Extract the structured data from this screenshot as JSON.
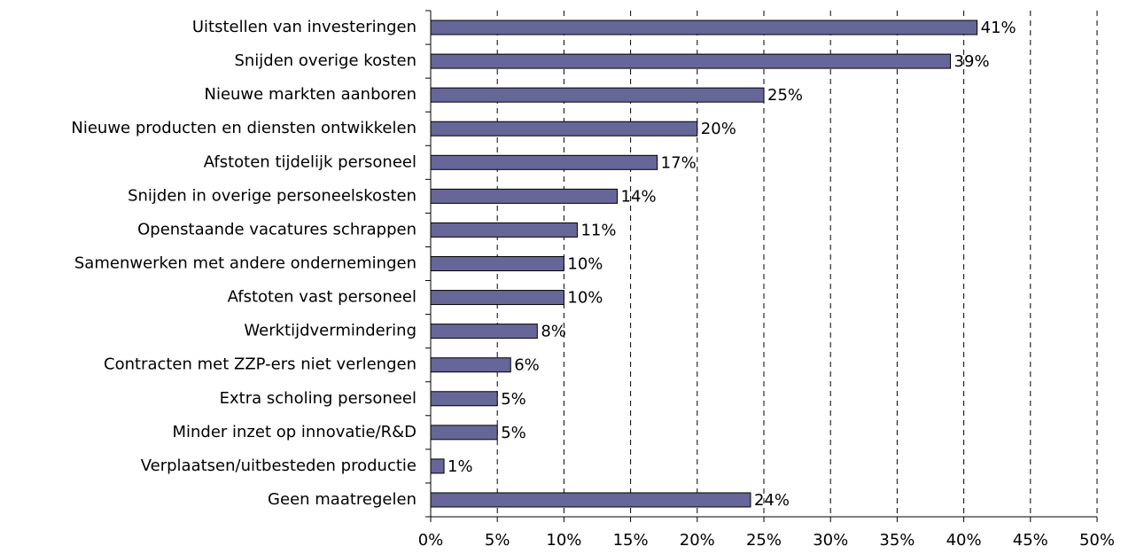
{
  "chart_data": {
    "type": "bar",
    "orientation": "horizontal",
    "categories": [
      "Uitstellen van investeringen",
      "Snijden overige kosten ",
      "Nieuwe markten aanboren",
      "Nieuwe producten en diensten ontwikkelen",
      "Afstoten tijdelijk personeel",
      "Snijden in overige personeelskosten",
      "Openstaande vacatures schrappen",
      "Samenwerken met andere ondernemingen",
      "Afstoten vast personeel",
      "Werktijdvermindering",
      "Contracten met ZZP-ers niet verlengen ",
      "Extra scholing personeel",
      "Minder inzet op innovatie/R&D",
      "Verplaatsen/uitbesteden productie",
      "Geen maatregelen"
    ],
    "values": [
      41,
      39,
      25,
      20,
      17,
      14,
      11,
      10,
      10,
      8,
      6,
      5,
      5,
      1,
      24
    ],
    "value_labels": [
      "41%",
      "39%",
      "25%",
      "20%",
      "17%",
      "14%",
      "11%",
      "10%",
      "10%",
      "8%",
      "6%",
      "5%",
      "5%",
      "1%",
      "24%"
    ],
    "color": "#666699",
    "xlim": [
      0,
      50
    ],
    "xticks": [
      {
        "value": 0,
        "label": "0%"
      },
      {
        "value": 5,
        "label": "5%"
      },
      {
        "value": 10,
        "label": "10%"
      },
      {
        "value": 15,
        "label": "15%"
      },
      {
        "value": 20,
        "label": "20%"
      },
      {
        "value": 25,
        "label": "25%"
      },
      {
        "value": 30,
        "label": "30%"
      },
      {
        "value": 35,
        "label": "35%"
      },
      {
        "value": 40,
        "label": "40%"
      },
      {
        "value": 45,
        "label": "45%"
      },
      {
        "value": 50,
        "label": "50%"
      }
    ],
    "grid": true
  }
}
